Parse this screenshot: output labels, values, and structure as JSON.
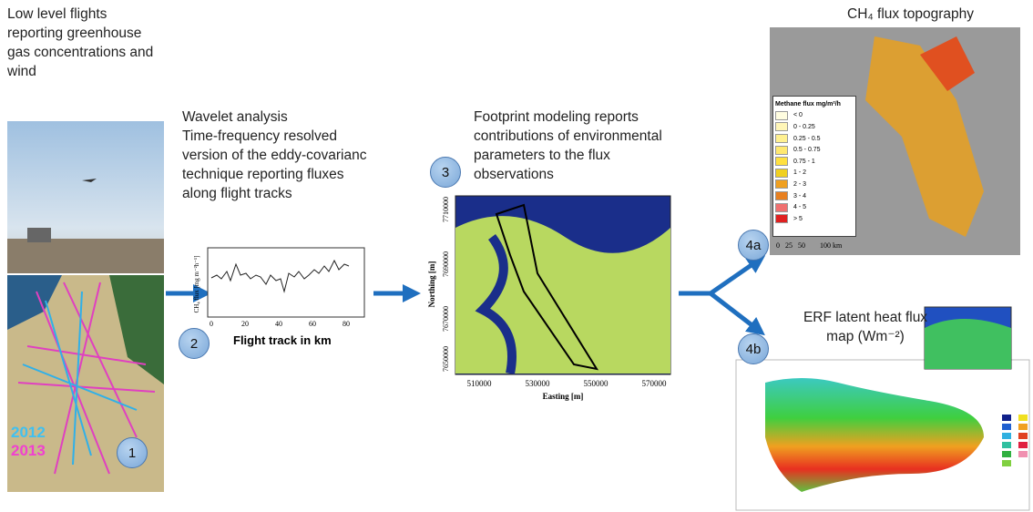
{
  "step1": {
    "text": "Low level flights reporting greenhouse gas concentrations and wind",
    "years": [
      "2012",
      "2013"
    ],
    "badge": "1"
  },
  "step2": {
    "heading": "Wavelet analysis",
    "text": "Time-frequency resolved version of the eddy-covarianc technique reporting fluxes along flight tracks",
    "badge": "2",
    "xlabel": "Flight track in km",
    "xticks": [
      "0",
      "20",
      "40",
      "60",
      "80"
    ],
    "ylabel": "CH₄ flux [mg m⁻²h⁻¹]"
  },
  "step3": {
    "text": "Footprint modeling reports contributions of environmental parameters to the flux observations",
    "badge": "3",
    "xlabel": "Easting [m]",
    "ylabel": "Northing [m]",
    "xticks": [
      "510000",
      "530000",
      "550000",
      "570000"
    ],
    "yticks": [
      "7650000",
      "7670000",
      "7690000",
      "7710000"
    ]
  },
  "step4a": {
    "title": "CH₄ flux topography",
    "badge": "4a",
    "legend_title": "Methane flux mg/m²/h",
    "legend": [
      "< 0",
      "0 - 0.25",
      "0.25 - 0.5",
      "0.5 - 0.75",
      "0.75 - 1",
      "1 - 2",
      "2 - 3",
      "3 - 4",
      "4 - 5",
      "> 5"
    ],
    "scale": "0   25   50        100 km"
  },
  "step4b": {
    "title": "ERF latent heat flux map (Wm⁻²)",
    "badge": "4b"
  }
}
